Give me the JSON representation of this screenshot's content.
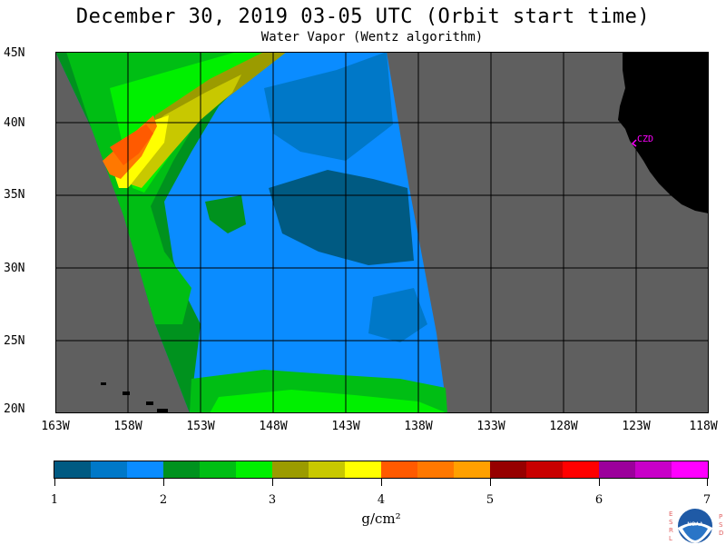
{
  "header": {
    "title": "December 30, 2019  03-05 UTC  (Orbit start time)",
    "subtitle": "Water Vapor (Wentz algorithm)"
  },
  "map": {
    "lat_labels": [
      "45N",
      "40N",
      "35N",
      "30N",
      "25N",
      "20N"
    ],
    "lon_labels": [
      "163W",
      "158W",
      "153W",
      "148W",
      "143W",
      "138W",
      "133W",
      "128W",
      "123W",
      "118W"
    ],
    "place_label": "CZD",
    "colors": {
      "no_data": "#5f5f5f",
      "land": "#000000",
      "grid": "#000000",
      "place_marker": "#ff00ff"
    }
  },
  "colorbar": {
    "ticks": [
      "1",
      "2",
      "3",
      "4",
      "5",
      "6",
      "7"
    ],
    "unit_label": "g/cm²",
    "colors": [
      "#005a82",
      "#0078c8",
      "#0a8cff",
      "#00921e",
      "#00be14",
      "#00f000",
      "#9b9b00",
      "#c8c800",
      "#ffff00",
      "#ff5a00",
      "#ff7800",
      "#ffa000",
      "#960000",
      "#c80000",
      "#ff0000",
      "#9b009b",
      "#c800c8",
      "#ff00ff"
    ]
  },
  "logo": {
    "left_letters": [
      "E",
      "S",
      "R",
      "L"
    ],
    "right_letters": [
      "P",
      "S",
      "D"
    ],
    "center_text": "NOAA"
  }
}
